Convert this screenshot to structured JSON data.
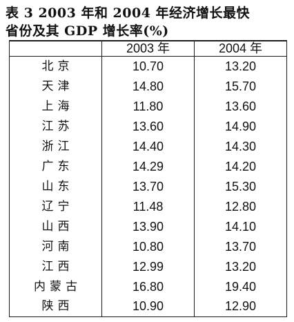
{
  "caption": {
    "line1": "表 3   2003 年和 2004 年经济增长最快",
    "line2": "省份及其 GDP 增长率(%)"
  },
  "table": {
    "headers": [
      "",
      "2003 年",
      "2004 年"
    ],
    "rows": [
      {
        "province": "北京",
        "y2003": "10.70",
        "y2004": "13.20"
      },
      {
        "province": "天津",
        "y2003": "14.80",
        "y2004": "15.70"
      },
      {
        "province": "上海",
        "y2003": "11.80",
        "y2004": "13.60"
      },
      {
        "province": "江苏",
        "y2003": "13.60",
        "y2004": "14.90"
      },
      {
        "province": "浙江",
        "y2003": "14.40",
        "y2004": "14.30"
      },
      {
        "province": "广东",
        "y2003": "14.29",
        "y2004": "14.20"
      },
      {
        "province": "山东",
        "y2003": "13.70",
        "y2004": "15.30"
      },
      {
        "province": "辽宁",
        "y2003": "11.48",
        "y2004": "12.80"
      },
      {
        "province": "山西",
        "y2003": "13.90",
        "y2004": "14.10"
      },
      {
        "province": "河南",
        "y2003": "10.80",
        "y2004": "13.70"
      },
      {
        "province": "江西",
        "y2003": "12.99",
        "y2004": "13.20"
      },
      {
        "province": "内蒙古",
        "y2003": "16.80",
        "y2004": "19.40"
      },
      {
        "province": "陕西",
        "y2003": "10.90",
        "y2004": "12.90"
      }
    ]
  }
}
